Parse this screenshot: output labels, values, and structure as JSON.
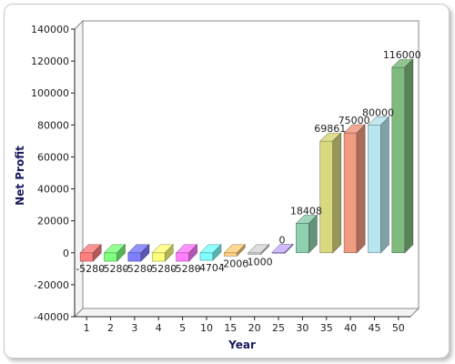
{
  "chart_data": {
    "type": "bar",
    "xlabel": "Year",
    "ylabel": "Net Profit",
    "ylim": [
      -40000,
      140000
    ],
    "yticks": [
      -40000,
      -20000,
      0,
      20000,
      40000,
      60000,
      80000,
      100000,
      120000,
      140000
    ],
    "categories": [
      "1",
      "2",
      "3",
      "4",
      "5",
      "10",
      "15",
      "20",
      "25",
      "30",
      "35",
      "40",
      "45",
      "50"
    ],
    "values": [
      -5280,
      -5280,
      -5280,
      -5280,
      -5280,
      -4704,
      -2000,
      -1000,
      0,
      18408,
      69861,
      75000,
      80000,
      116000
    ],
    "data_labels": [
      "-5280",
      "-5280",
      "-5280",
      "-5280",
      "-5280",
      "-4704",
      "-2000",
      "-1000",
      "0",
      "18408",
      "69861",
      "75000",
      "80000",
      "116000"
    ],
    "colors": [
      "#ff7f7f",
      "#7fff7f",
      "#7f7fff",
      "#ffff7f",
      "#ff7fff",
      "#7fffff",
      "#ffd27f",
      "#d8d8d8",
      "#c8b0ff",
      "#8fd0b0",
      "#d8d87f",
      "#f09a80",
      "#b8e6ee",
      "#7fba7f"
    ],
    "grid": false,
    "legend": "none"
  }
}
